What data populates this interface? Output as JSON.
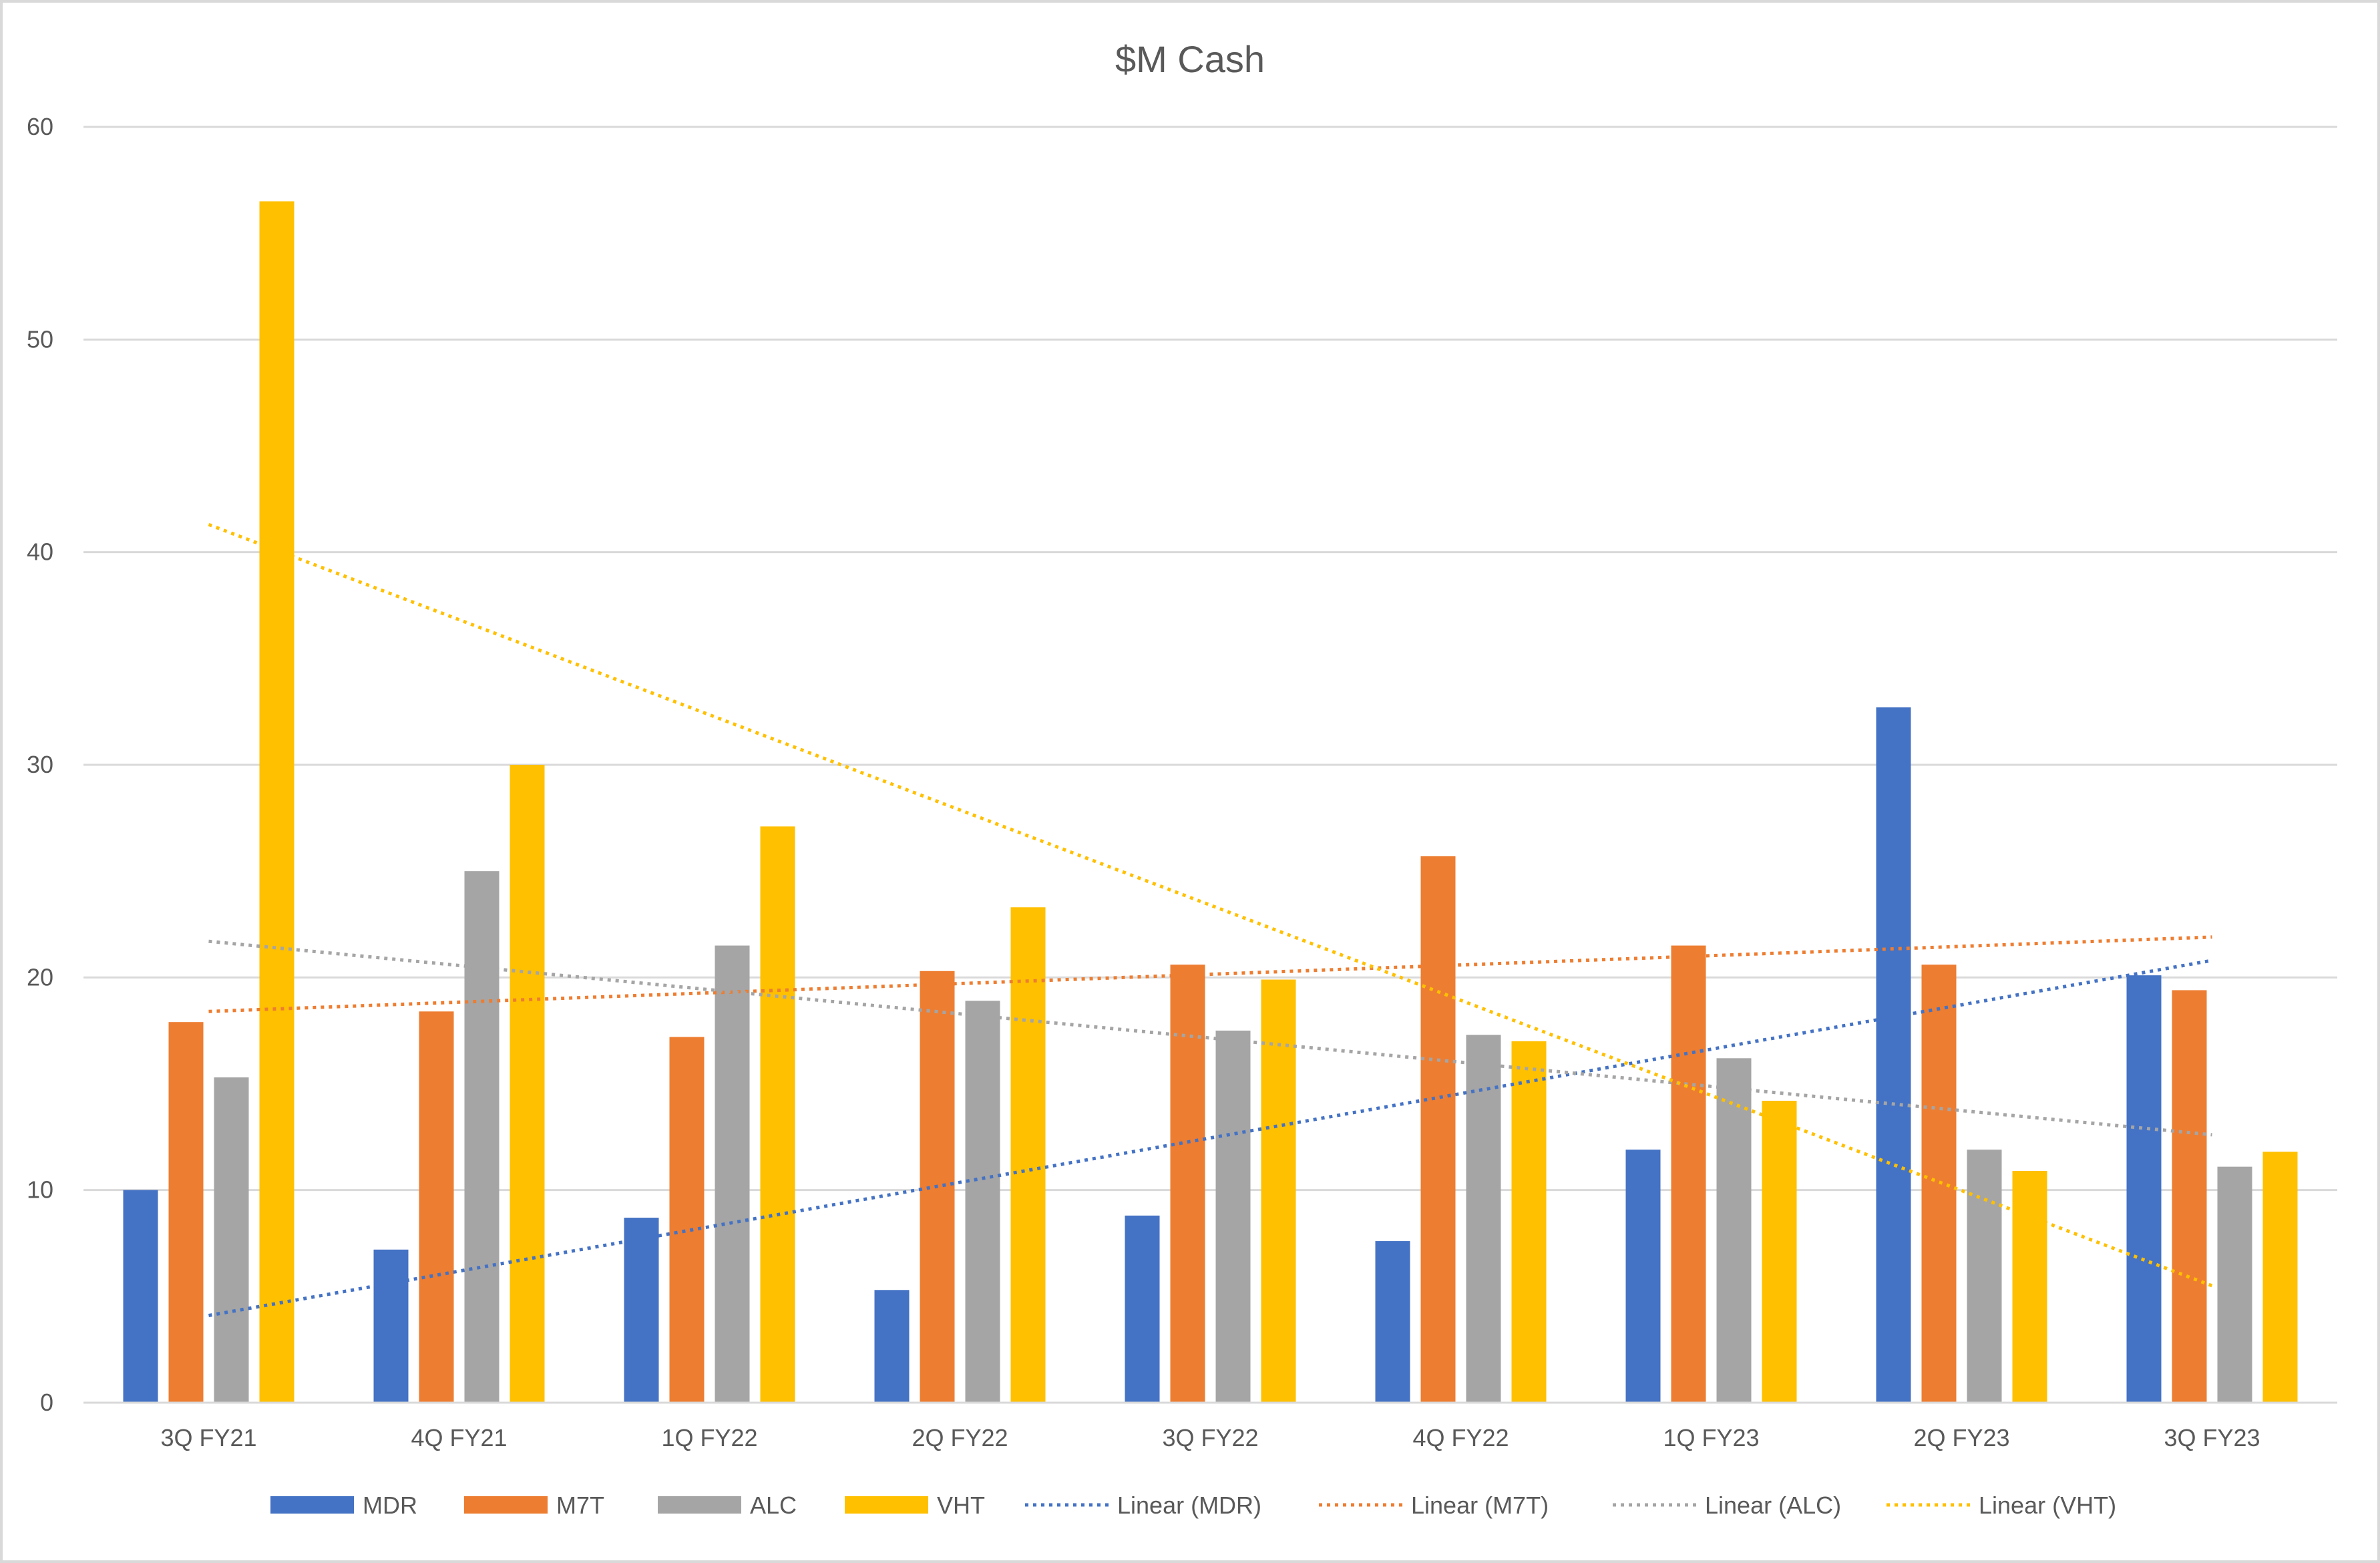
{
  "chart_data": {
    "type": "bar",
    "title": "$M Cash",
    "xlabel": "",
    "ylabel": "",
    "ylim": [
      0,
      60
    ],
    "yticks": [
      0,
      10,
      20,
      30,
      40,
      50,
      60
    ],
    "grid": true,
    "legend_position": "bottom",
    "categories": [
      "3Q FY21",
      "4Q FY21",
      "1Q FY22",
      "2Q FY22",
      "3Q FY22",
      "4Q FY22",
      "1Q FY23",
      "2Q FY23",
      "3Q FY23"
    ],
    "series": [
      {
        "name": "MDR",
        "color": "#4472C4",
        "values": [
          10.0,
          7.2,
          8.7,
          5.3,
          8.8,
          7.6,
          11.9,
          32.7,
          20.1
        ]
      },
      {
        "name": "M7T",
        "color": "#ED7D31",
        "values": [
          17.9,
          18.4,
          17.2,
          20.3,
          20.6,
          25.7,
          21.5,
          20.6,
          19.4
        ]
      },
      {
        "name": "ALC",
        "color": "#A5A5A5",
        "values": [
          15.3,
          25.0,
          21.5,
          18.9,
          17.5,
          17.3,
          16.2,
          11.9,
          11.1
        ]
      },
      {
        "name": "VHT",
        "color": "#FFC000",
        "values": [
          56.5,
          30.0,
          27.1,
          23.3,
          19.9,
          17.0,
          14.2,
          10.9,
          11.8
        ]
      }
    ],
    "trendlines": [
      {
        "name": "Linear (MDR)",
        "color": "#4472C4",
        "start": 4.1,
        "end": 20.8
      },
      {
        "name": "Linear (M7T)",
        "color": "#ED7D31",
        "start": 18.4,
        "end": 21.9
      },
      {
        "name": "Linear (ALC)",
        "color": "#A5A5A5",
        "start": 21.7,
        "end": 12.6
      },
      {
        "name": "Linear (VHT)",
        "color": "#FFC000",
        "start": 41.3,
        "end": 5.5
      }
    ]
  }
}
